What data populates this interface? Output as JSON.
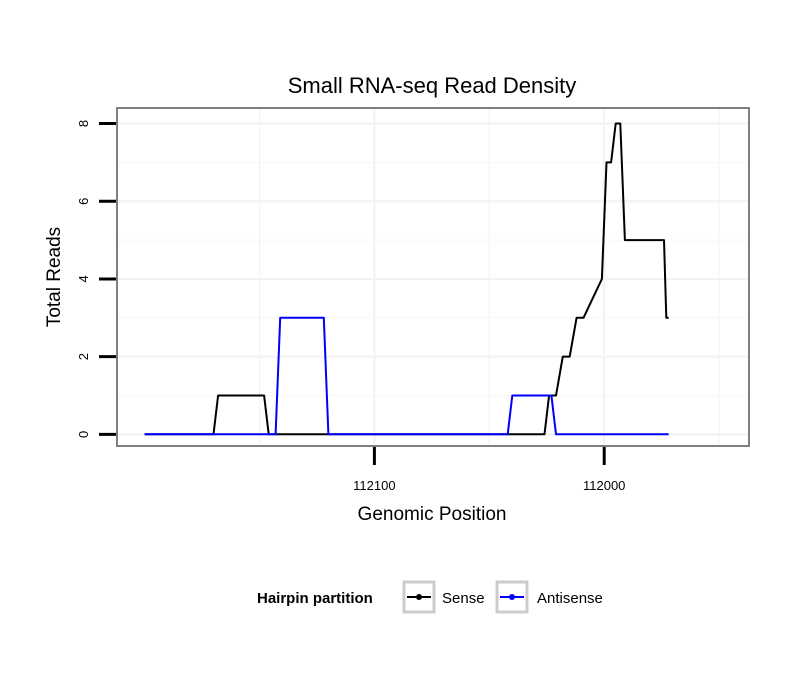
{
  "chart_data": {
    "type": "line",
    "title": "Small RNA-seq Read Density",
    "xlabel": "Genomic Position",
    "ylabel": "Total Reads",
    "x_reversed": true,
    "xlim": [
      112212,
      111937
    ],
    "ylim": [
      -0.3,
      8.4
    ],
    "x_ticks": [
      112100,
      112000
    ],
    "x_tick_labels": [
      "112100",
      "112000"
    ],
    "y_ticks": [
      0,
      2,
      4,
      6,
      8
    ],
    "y_tick_labels": [
      "0",
      "2",
      "4",
      "6",
      "8"
    ],
    "grid": true,
    "legend_position": "bottom",
    "legend_title": "Hairpin partition",
    "series": [
      {
        "name": "Sense",
        "color": "#000000",
        "x": [
          112200,
          112170,
          112168,
          112148,
          112146,
          112026,
          112024,
          112021,
          112018,
          112015,
          112012,
          112009,
          112001,
          111999,
          111997,
          111995,
          111993,
          111991,
          111985,
          111974,
          111973,
          111972
        ],
        "y": [
          0,
          0,
          1,
          1,
          0,
          0,
          1,
          1,
          2,
          2,
          3,
          3,
          4,
          7,
          7,
          8,
          8,
          5,
          5,
          5,
          3,
          3
        ]
      },
      {
        "name": "Antisense",
        "color": "#0000ff",
        "x": [
          112200,
          112143,
          112141,
          112122,
          112120,
          112042,
          112040,
          112023,
          112021,
          111972
        ],
        "y": [
          0,
          0,
          3,
          3,
          0,
          0,
          1,
          1,
          0,
          0
        ]
      }
    ]
  }
}
